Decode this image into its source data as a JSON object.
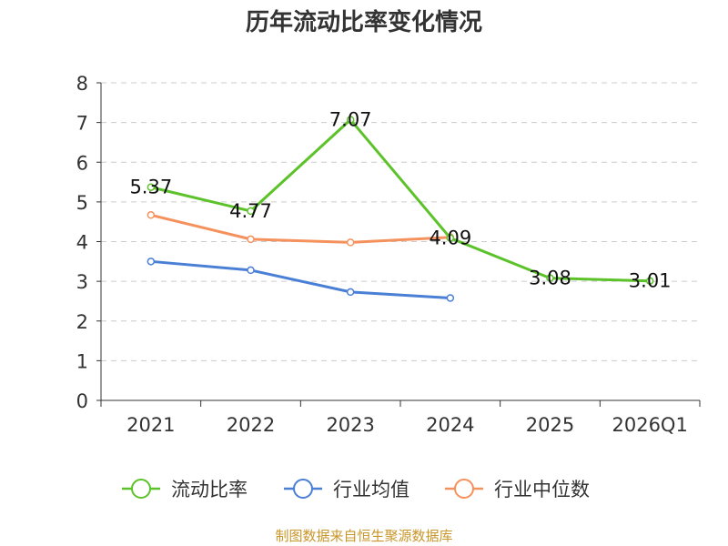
{
  "chart_data": {
    "type": "line",
    "title": "历年流动比率变化情况",
    "categories": [
      "2021",
      "2022",
      "2023",
      "2024",
      "2025",
      "2026Q1"
    ],
    "ylim": [
      0,
      8
    ],
    "yticks": [
      0,
      1,
      2,
      3,
      4,
      5,
      6,
      7,
      8
    ],
    "grid": true,
    "legend_position": "bottom",
    "series": [
      {
        "name": "流动比率",
        "color": "#5cc22a",
        "values": [
          5.37,
          4.77,
          7.07,
          4.09,
          3.08,
          3.01
        ],
        "labels": [
          "5.37",
          "4.77",
          "7.07",
          "4.09",
          "3.08",
          "3.01"
        ]
      },
      {
        "name": "行业均值",
        "color": "#4a7fd6",
        "values": [
          3.5,
          3.28,
          2.73,
          2.58,
          null,
          null
        ]
      },
      {
        "name": "行业中位数",
        "color": "#f5915c",
        "values": [
          4.67,
          4.06,
          3.98,
          4.11,
          null,
          null
        ]
      }
    ]
  },
  "source": "制图数据来自恒生聚源数据库"
}
